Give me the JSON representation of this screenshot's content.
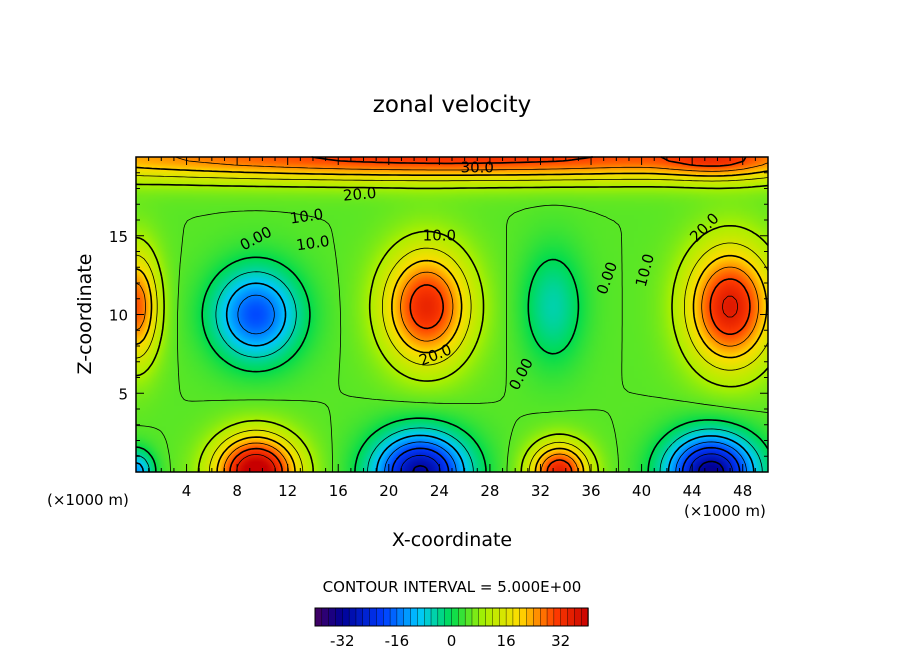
{
  "chart_data": {
    "type": "heatmap",
    "title": "zonal velocity",
    "xlabel": "X-coordinate",
    "ylabel": "Z-coordinate",
    "x_unit_label": "(×1000 m)",
    "z_unit_label": "(×1000 m)",
    "xlim": [
      0,
      50
    ],
    "ylim": [
      0,
      20
    ],
    "x_ticks": [
      "4",
      "8",
      "12",
      "16",
      "20",
      "24",
      "28",
      "32",
      "36",
      "40",
      "44",
      "48"
    ],
    "x_tick_values": [
      4,
      8,
      12,
      16,
      20,
      24,
      28,
      32,
      36,
      40,
      44,
      48
    ],
    "y_ticks": [
      "5",
      "10",
      "15"
    ],
    "y_tick_values": [
      5,
      10,
      15
    ],
    "contour_interval_text": "CONTOUR INTERVAL = 5.000E+00",
    "colorbar": {
      "range": [
        -40,
        40
      ],
      "tick_labels": [
        "-32",
        "-16",
        "0",
        "16",
        "32"
      ],
      "tick_values": [
        -32,
        -16,
        0,
        16,
        32
      ]
    },
    "features": [
      {
        "x": 25,
        "z": 20,
        "sx": 40,
        "sz": 1.5,
        "value": 27
      },
      {
        "x": 46,
        "z": 19.8,
        "sx": 4,
        "sz": 1.2,
        "value": 8
      },
      {
        "x": 23,
        "z": 10.5,
        "sx": 3.4,
        "sz": 3.6,
        "value": 29
      },
      {
        "x": 47,
        "z": 10.5,
        "sx": 3.4,
        "sz": 3.8,
        "value": 31
      },
      {
        "x": 0,
        "z": 10.5,
        "sx": 1.8,
        "sz": 3.5,
        "value": 24
      },
      {
        "x": 9.5,
        "z": 10,
        "sx": 3.4,
        "sz": 2.9,
        "value": -24
      },
      {
        "x": 33,
        "z": 10.5,
        "sx": 2.4,
        "sz": 3.6,
        "value": -10
      },
      {
        "x": 9.5,
        "z": 0,
        "sx": 3.2,
        "sz": 2.3,
        "value": 38
      },
      {
        "x": 33.5,
        "z": 0,
        "sx": 2.3,
        "sz": 1.8,
        "value": 30
      },
      {
        "x": 22.5,
        "z": 0,
        "sx": 3.7,
        "sz": 2.5,
        "value": -36
      },
      {
        "x": 45.5,
        "z": 0,
        "sx": 3.5,
        "sz": 2.4,
        "value": -38
      },
      {
        "x": 0,
        "z": 0,
        "sx": 1.4,
        "sz": 1.4,
        "value": -18
      }
    ],
    "contour_labels": [
      {
        "text": "30.0",
        "x": 27,
        "z": 19.3,
        "angle": 0
      },
      {
        "text": "20.0",
        "x": 17.7,
        "z": 17.6,
        "angle": -5
      },
      {
        "text": "10.0",
        "x": 13.5,
        "z": 16.2,
        "angle": -8
      },
      {
        "text": "0.00",
        "x": 9.5,
        "z": 14.8,
        "angle": -28
      },
      {
        "text": "10.0",
        "x": 14,
        "z": 14.5,
        "angle": -8
      },
      {
        "text": "10.0",
        "x": 24,
        "z": 15,
        "angle": 0
      },
      {
        "text": "20.0",
        "x": 23.7,
        "z": 7.4,
        "angle": -22
      },
      {
        "text": "0.00",
        "x": 30.5,
        "z": 6.2,
        "angle": -62
      },
      {
        "text": "0.00",
        "x": 37.3,
        "z": 12.3,
        "angle": -70
      },
      {
        "text": "10.0",
        "x": 40.3,
        "z": 12.8,
        "angle": -75
      },
      {
        "text": "20.0",
        "x": 45,
        "z": 15.5,
        "angle": -45
      }
    ]
  }
}
